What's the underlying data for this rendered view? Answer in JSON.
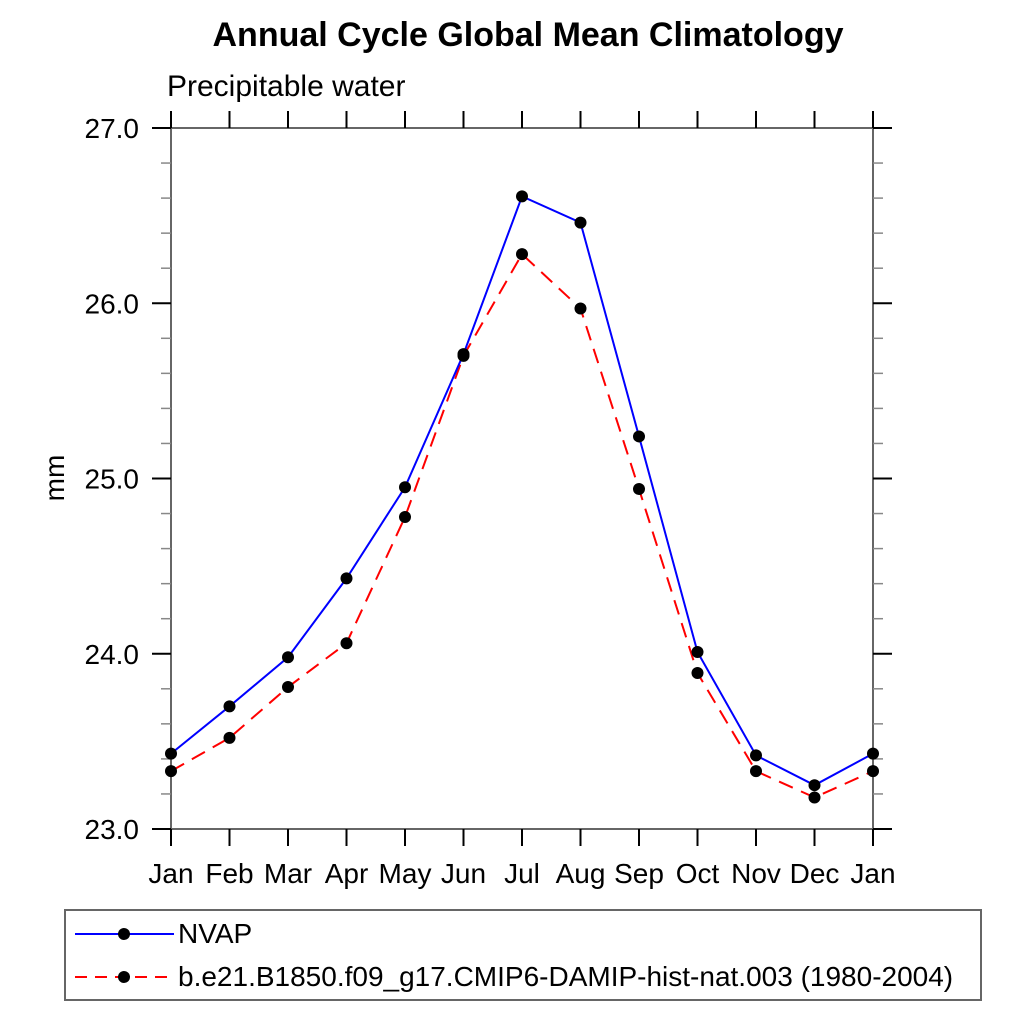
{
  "header": {
    "title": "Annual Cycle Global Mean Climatology",
    "subtitle": "Precipitable water"
  },
  "chart_data": {
    "type": "line",
    "title": "Annual Cycle Global Mean Climatology",
    "subtitle": "Precipitable water",
    "xlabel": "",
    "ylabel": "mm",
    "categories": [
      "Jan",
      "Feb",
      "Mar",
      "Apr",
      "May",
      "Jun",
      "Jul",
      "Aug",
      "Sep",
      "Oct",
      "Nov",
      "Dec",
      "Jan"
    ],
    "ylim": [
      23.0,
      27.0
    ],
    "ytick_labels": [
      "23.0",
      "24.0",
      "25.0",
      "26.0",
      "27.0"
    ],
    "ytick_major_values": [
      23.0,
      24.0,
      25.0,
      26.0,
      27.0
    ],
    "ytick_minor_step": 0.2,
    "grid": false,
    "legend_position": "bottom",
    "colors": {
      "nvap_line": "#0000ff",
      "model_line": "#ff0000",
      "marker": "#000000",
      "frame": "#666666",
      "major_tick": "#000000",
      "minor_tick": "#888888",
      "text": "#000000",
      "legend_border": "#666666"
    },
    "series": [
      {
        "name": "NVAP",
        "style": "solid",
        "color": "#0000ff",
        "marker": "circle",
        "marker_color": "#000000",
        "values": [
          23.43,
          23.7,
          23.98,
          24.43,
          24.95,
          25.71,
          26.61,
          26.46,
          25.24,
          24.01,
          23.42,
          23.25,
          23.43
        ]
      },
      {
        "name": "b.e21.B1850.f09_g17.CMIP6-DAMIP-hist-nat.003 (1980-2004)",
        "style": "dashed",
        "color": "#ff0000",
        "marker": "circle",
        "marker_color": "#000000",
        "values": [
          23.33,
          23.52,
          23.81,
          24.06,
          24.78,
          25.7,
          26.28,
          25.97,
          24.94,
          23.89,
          23.33,
          23.18,
          23.33
        ]
      }
    ]
  }
}
